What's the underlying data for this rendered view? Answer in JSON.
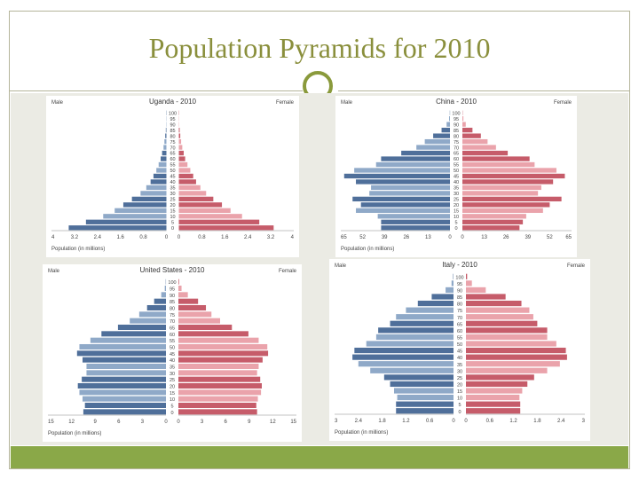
{
  "slide": {
    "title": "Population Pyramids for 2010",
    "colors": {
      "title": "#8a8f3c",
      "accent": "#8aa848",
      "male": "#4f6f9a",
      "male_light": "#8fa9c8",
      "female": "#c65c6a",
      "female_light": "#eaa3ab"
    }
  },
  "chart_data": [
    {
      "type": "bar",
      "title": "Uganda - 2010",
      "male_label": "Male",
      "female_label": "Female",
      "xlabel": "Population (in millions)",
      "age_labels": [
        "0",
        "5",
        "10",
        "15",
        "20",
        "25",
        "30",
        "35",
        "40",
        "45",
        "50",
        "55",
        "60",
        "65",
        "70",
        "75",
        "80",
        "85",
        "90",
        "95",
        "100"
      ],
      "male": [
        3.4,
        2.8,
        2.2,
        1.8,
        1.5,
        1.2,
        0.9,
        0.7,
        0.55,
        0.45,
        0.35,
        0.27,
        0.2,
        0.15,
        0.1,
        0.07,
        0.04,
        0.02,
        0.01,
        0.005,
        0.002
      ],
      "female": [
        3.3,
        2.8,
        2.2,
        1.8,
        1.5,
        1.2,
        0.95,
        0.75,
        0.6,
        0.5,
        0.4,
        0.3,
        0.22,
        0.17,
        0.12,
        0.08,
        0.05,
        0.03,
        0.01,
        0.005,
        0.002
      ],
      "xmax": 4,
      "male_ticks": [
        "4",
        "3.2",
        "2.4",
        "1.6",
        "0.8",
        "0"
      ],
      "female_ticks": [
        "0",
        "0.8",
        "1.6",
        "2.4",
        "3.2",
        "4"
      ]
    },
    {
      "type": "bar",
      "title": "China - 2010",
      "male_label": "Male",
      "female_label": "Female",
      "xlabel": "Population (in millions)",
      "age_labels": [
        "0",
        "5",
        "10",
        "15",
        "20",
        "25",
        "30",
        "35",
        "40",
        "45",
        "50",
        "55",
        "60",
        "65",
        "70",
        "75",
        "80",
        "85",
        "90",
        "95",
        "100"
      ],
      "male": [
        41,
        41,
        43,
        56,
        53,
        58,
        48,
        47,
        56,
        63,
        57,
        44,
        41,
        29,
        20,
        15,
        10,
        5,
        2,
        0.5,
        0.1
      ],
      "female": [
        34,
        36,
        38,
        48,
        52,
        59,
        45,
        47,
        54,
        61,
        56,
        43,
        40,
        27,
        20,
        15,
        11,
        6,
        2,
        0.6,
        0.1
      ],
      "xmax": 65,
      "male_ticks": [
        "65",
        "52",
        "39",
        "26",
        "13",
        "0"
      ],
      "female_ticks": [
        "0",
        "13",
        "26",
        "39",
        "52",
        "65"
      ]
    },
    {
      "type": "bar",
      "title": "United States - 2010",
      "male_label": "Male",
      "female_label": "Female",
      "xlabel": "Population (in millions)",
      "age_labels": [
        "0",
        "5",
        "10",
        "15",
        "20",
        "25",
        "30",
        "35",
        "40",
        "45",
        "50",
        "55",
        "60",
        "65",
        "70",
        "75",
        "80",
        "85",
        "90",
        "95",
        "100"
      ],
      "male": [
        10.5,
        10.3,
        10.6,
        11.0,
        11.2,
        10.7,
        10.1,
        10.1,
        10.6,
        11.3,
        11.0,
        9.6,
        8.2,
        6.1,
        4.6,
        3.4,
        2.4,
        1.5,
        0.6,
        0.15,
        0.03
      ],
      "female": [
        10.0,
        9.9,
        10.1,
        10.5,
        10.6,
        10.4,
        10.0,
        10.2,
        10.7,
        11.4,
        11.3,
        10.2,
        8.9,
        6.8,
        5.3,
        4.2,
        3.5,
        2.5,
        1.2,
        0.4,
        0.08
      ],
      "xmax": 15,
      "male_ticks": [
        "15",
        "12",
        "9",
        "6",
        "3",
        "0"
      ],
      "female_ticks": [
        "0",
        "3",
        "6",
        "9",
        "12",
        "15"
      ]
    },
    {
      "type": "bar",
      "title": "Italy - 2010",
      "male_label": "Male",
      "female_label": "Female",
      "xlabel": "Population (in millions)",
      "age_labels": [
        "0",
        "5",
        "10",
        "15",
        "20",
        "25",
        "30",
        "35",
        "40",
        "45",
        "50",
        "55",
        "60",
        "65",
        "70",
        "75",
        "80",
        "85",
        "90",
        "95",
        "100"
      ],
      "male": [
        1.45,
        1.45,
        1.42,
        1.5,
        1.6,
        1.75,
        2.1,
        2.4,
        2.55,
        2.5,
        2.2,
        1.95,
        1.9,
        1.6,
        1.45,
        1.2,
        0.9,
        0.55,
        0.2,
        0.05,
        0.01
      ],
      "female": [
        1.37,
        1.37,
        1.35,
        1.42,
        1.55,
        1.72,
        2.05,
        2.37,
        2.55,
        2.52,
        2.28,
        2.05,
        2.05,
        1.8,
        1.7,
        1.6,
        1.4,
        1.0,
        0.5,
        0.15,
        0.03
      ],
      "xmax": 3,
      "male_ticks": [
        "3",
        "2.4",
        "1.8",
        "1.2",
        "0.6",
        "0"
      ],
      "female_ticks": [
        "0",
        "0.6",
        "1.2",
        "1.8",
        "2.4",
        "3"
      ]
    }
  ]
}
